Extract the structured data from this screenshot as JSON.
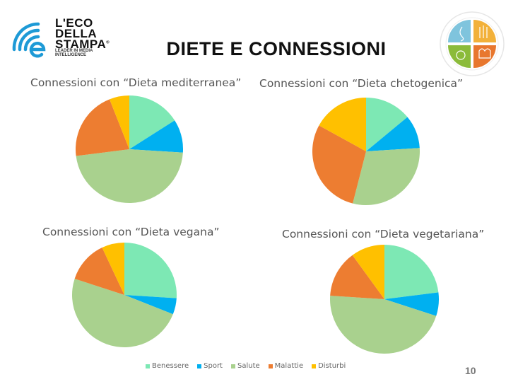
{
  "logo": {
    "lines": [
      "L'ECO",
      "DELLA",
      "STAMPA"
    ],
    "registered": "®",
    "tagline": [
      "LEADER IN MEDIA",
      "INTELLIGENCE"
    ],
    "color": "#1e9ad6"
  },
  "header": {
    "title": "DIETE E CONNESSIONI"
  },
  "badge": {
    "colors": [
      "#7fc4dd",
      "#f2b13a",
      "#8bbb3a",
      "#e8772e"
    ]
  },
  "page_number": "10",
  "legend": [
    {
      "label": "Benessere",
      "color": "#7de8b4"
    },
    {
      "label": "Sport",
      "color": "#00b0f0"
    },
    {
      "label": "Salute",
      "color": "#a9d18e"
    },
    {
      "label": "Malattie",
      "color": "#ed7d31"
    },
    {
      "label": "Disturbi",
      "color": "#ffc000"
    }
  ],
  "chart_data": [
    {
      "type": "pie",
      "title": "Connessioni con “Dieta mediterranea”",
      "categories": [
        "Benessere",
        "Sport",
        "Salute",
        "Malattie",
        "Disturbi"
      ],
      "values": [
        16,
        10,
        47,
        21,
        6
      ],
      "unit": "% (estimated)"
    },
    {
      "type": "pie",
      "title": "Connessioni con “Dieta chetogenica”",
      "categories": [
        "Benessere",
        "Sport",
        "Salute",
        "Malattie",
        "Disturbi"
      ],
      "values": [
        14,
        10,
        30,
        29,
        17
      ],
      "unit": "% (estimated)"
    },
    {
      "type": "pie",
      "title": "Connessioni con “Dieta vegana”",
      "categories": [
        "Benessere",
        "Sport",
        "Salute",
        "Malattie",
        "Disturbi"
      ],
      "values": [
        26,
        5,
        49,
        13,
        7
      ],
      "unit": "% (estimated)"
    },
    {
      "type": "pie",
      "title": "Connessioni con “Dieta vegetariana”",
      "categories": [
        "Benessere",
        "Sport",
        "Salute",
        "Malattie",
        "Disturbi"
      ],
      "values": [
        23,
        7,
        46,
        14,
        10
      ],
      "unit": "% (estimated)"
    }
  ]
}
